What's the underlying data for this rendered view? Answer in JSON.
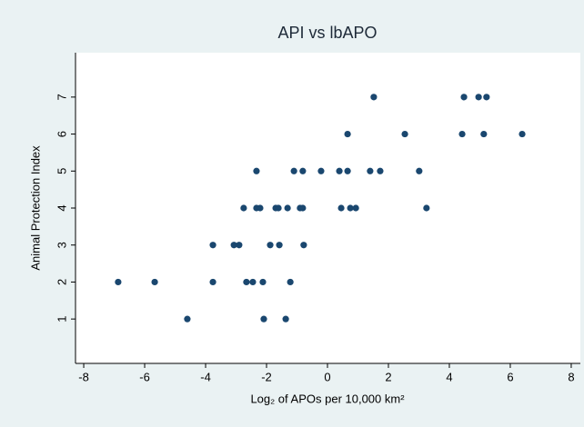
{
  "chart_data": {
    "type": "scatter",
    "title": "API vs lbAPO",
    "xlabel": "Log₂ of APOs per 10,000 km²",
    "ylabel": "Animal Protection Index",
    "color": "#1a476f",
    "x": [
      -6.87,
      -5.67,
      -3.76,
      -2.66,
      -2.45,
      -2.12,
      -1.22,
      -4.6,
      -2.09,
      -1.37,
      -3.76,
      -3.07,
      -2.9,
      -1.88,
      -1.58,
      -0.78,
      -2.75,
      -2.33,
      -2.21,
      -1.7,
      -1.61,
      -1.31,
      -0.9,
      -0.81,
      0.45,
      0.75,
      0.93,
      3.25,
      -2.33,
      -1.1,
      -0.81,
      -0.21,
      0.39,
      0.66,
      1.4,
      1.73,
      3.01,
      0.66,
      2.54,
      4.42,
      5.13,
      6.39,
      1.52,
      4.48,
      4.96,
      5.22
    ],
    "values": [
      2,
      2,
      2,
      2,
      2,
      2,
      2,
      1,
      1,
      1,
      3,
      3,
      3,
      3,
      3,
      3,
      4,
      4,
      4,
      4,
      4,
      4,
      4,
      4,
      4,
      4,
      4,
      4,
      5,
      5,
      5,
      5,
      5,
      5,
      5,
      5,
      5,
      6,
      6,
      6,
      6,
      6,
      7,
      7,
      7,
      7
    ],
    "xlim": [
      -8.27,
      8.3
    ],
    "xticks": [
      -8,
      -6,
      -4,
      -2,
      0,
      2,
      4,
      6,
      8
    ],
    "ylim": [
      -0.2,
      8.2
    ],
    "yticks": [
      1,
      2,
      3,
      4,
      5,
      6,
      7
    ],
    "grid": false
  }
}
